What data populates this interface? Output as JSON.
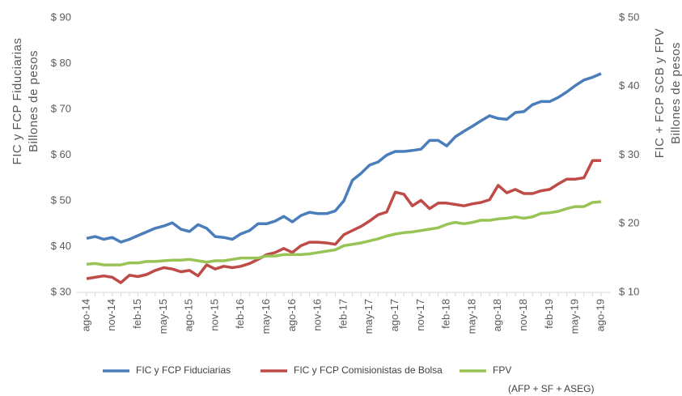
{
  "chart_data": {
    "type": "line",
    "y_label": [
      "FIC y FCP Fiduciarias",
      "Billones de pesos"
    ],
    "y2_label": [
      "FIC + FCP SCB y FPV",
      "Billones de pesos"
    ],
    "categories": [
      "ago-14",
      null,
      null,
      "nov-14",
      null,
      null,
      "feb-15",
      null,
      null,
      "may-15",
      null,
      null,
      "ago-15",
      null,
      null,
      "nov-15",
      null,
      null,
      "feb-16",
      null,
      null,
      "may-16",
      null,
      null,
      "ago-16",
      null,
      null,
      "nov-16",
      null,
      null,
      "feb-17",
      null,
      null,
      "may-17",
      null,
      null,
      "ago-17",
      null,
      null,
      "nov-17",
      null,
      null,
      "feb-18",
      null,
      null,
      "may-18",
      null,
      null,
      "ago-18",
      null,
      null,
      "nov-18",
      null,
      null,
      "feb-19",
      null,
      null,
      "may-19",
      null,
      null,
      "ago-19"
    ],
    "ylim": [
      30,
      90
    ],
    "yticks": [
      {
        "value": 30,
        "label": "$ 30"
      },
      {
        "value": 40,
        "label": "$ 40"
      },
      {
        "value": 50,
        "label": "$ 50"
      },
      {
        "value": 60,
        "label": "$ 60"
      },
      {
        "value": 70,
        "label": "$ 70"
      },
      {
        "value": 80,
        "label": "$ 80"
      },
      {
        "value": 90,
        "label": "$ 90"
      }
    ],
    "y2lim": [
      10,
      50
    ],
    "y2ticks": [
      {
        "value": 10,
        "label": "$ 10"
      },
      {
        "value": 20,
        "label": "$ 20"
      },
      {
        "value": 30,
        "label": "$ 30"
      },
      {
        "value": 40,
        "label": "$ 40"
      },
      {
        "value": 50,
        "label": "$ 50"
      }
    ],
    "series": [
      {
        "name": "FIC y FCP Fiduciarias",
        "color": "#4a7ebb",
        "axis": "y",
        "values": [
          41.8,
          42.2,
          41.6,
          42.0,
          41.0,
          41.6,
          42.4,
          43.2,
          44.0,
          44.5,
          45.2,
          43.8,
          43.3,
          44.8,
          44.0,
          42.2,
          42.0,
          41.6,
          42.8,
          43.5,
          45.0,
          45.0,
          45.6,
          46.6,
          45.4,
          46.8,
          47.5,
          47.2,
          47.2,
          47.8,
          50.0,
          54.5,
          56.0,
          57.8,
          58.5,
          60.0,
          60.8,
          60.8,
          61.0,
          61.3,
          63.2,
          63.2,
          62.0,
          64.0,
          65.2,
          66.3,
          67.5,
          68.6,
          68.0,
          67.8,
          69.3,
          69.5,
          71.0,
          71.7,
          71.7,
          72.6,
          73.8,
          75.2,
          76.4,
          77.0,
          77.8
        ]
      },
      {
        "name": "FIC y FCP Comisionistas de Bolsa",
        "color": "#be4b48",
        "axis": "y2",
        "values": [
          12.0,
          12.2,
          12.4,
          12.2,
          11.4,
          12.5,
          12.3,
          12.6,
          13.2,
          13.6,
          13.4,
          13.0,
          13.2,
          12.4,
          14.0,
          13.4,
          13.8,
          13.6,
          13.8,
          14.2,
          14.8,
          15.5,
          15.8,
          16.4,
          15.8,
          16.8,
          17.3,
          17.3,
          17.2,
          17.0,
          18.4,
          19.0,
          19.6,
          20.4,
          21.3,
          21.7,
          24.6,
          24.3,
          22.6,
          23.4,
          22.2,
          23.0,
          23.0,
          22.8,
          22.6,
          22.9,
          23.1,
          23.5,
          25.6,
          24.5,
          25.0,
          24.4,
          24.4,
          24.8,
          25.0,
          25.8,
          26.5,
          26.5,
          26.7,
          29.2,
          29.2
        ]
      },
      {
        "name": "FPV",
        "color": "#98c456",
        "axis": "y2",
        "values": [
          14.1,
          14.2,
          14.0,
          14.0,
          14.0,
          14.3,
          14.3,
          14.5,
          14.5,
          14.6,
          14.7,
          14.7,
          14.8,
          14.6,
          14.4,
          14.6,
          14.6,
          14.8,
          15.0,
          15.0,
          15.0,
          15.3,
          15.3,
          15.5,
          15.5,
          15.5,
          15.6,
          15.8,
          16.0,
          16.2,
          16.8,
          17.0,
          17.2,
          17.5,
          17.8,
          18.2,
          18.5,
          18.7,
          18.8,
          19.0,
          19.2,
          19.4,
          19.9,
          20.2,
          20.0,
          20.2,
          20.5,
          20.5,
          20.7,
          20.8,
          21.0,
          20.8,
          21.0,
          21.5,
          21.6,
          21.8,
          22.2,
          22.5,
          22.5,
          23.1,
          23.2
        ]
      }
    ],
    "legend_note": "(AFP + SF + ASEG)"
  }
}
